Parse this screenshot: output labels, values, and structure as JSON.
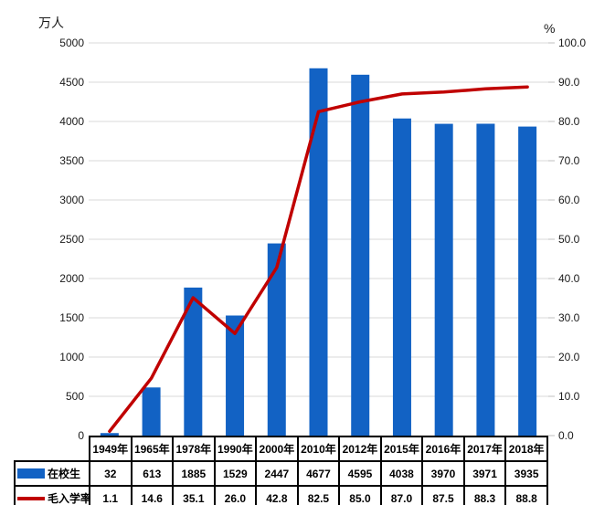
{
  "chart_data": {
    "type": "combo",
    "title": "",
    "categories": [
      "1949年",
      "1965年",
      "1978年",
      "1990年",
      "2000年",
      "2010年",
      "2012年",
      "2015年",
      "2016年",
      "2017年",
      "2018年"
    ],
    "series": [
      {
        "name": "在校生",
        "type": "bar",
        "axis": "left",
        "color": "#1262C4",
        "values": [
          32,
          613,
          1885,
          1529,
          2447,
          4677,
          4595,
          4038,
          3970,
          3971,
          3935
        ],
        "labels": [
          "32",
          "613",
          "1885",
          "1529",
          "2447",
          "4677",
          "4595",
          "4038",
          "3970",
          "3971",
          "3935"
        ]
      },
      {
        "name": "毛入学率",
        "type": "line",
        "axis": "right",
        "color": "#C00000",
        "values": [
          1.1,
          14.6,
          35.1,
          26.0,
          42.8,
          82.5,
          85.0,
          87.0,
          87.5,
          88.3,
          88.8
        ],
        "labels": [
          "1.1",
          "14.6",
          "35.1",
          "26.0",
          "42.8",
          "82.5",
          "85.0",
          "87.0",
          "87.5",
          "88.3",
          "88.8"
        ]
      }
    ],
    "left_axis": {
      "title": "万人",
      "min": 0,
      "max": 5000,
      "step": 500,
      "tick_labels": [
        "0",
        "500",
        "1000",
        "1500",
        "2000",
        "2500",
        "3000",
        "3500",
        "4000",
        "4500",
        "5000"
      ]
    },
    "right_axis": {
      "title": "%",
      "min": 0,
      "max": 100,
      "step": 10,
      "tick_labels": [
        "0.0",
        "10.0",
        "20.0",
        "30.0",
        "40.0",
        "50.0",
        "60.0",
        "70.0",
        "80.0",
        "90.0",
        "100.0"
      ]
    },
    "grid": true,
    "legend_position": "table-left",
    "gridline_color": "#D9D9D9",
    "tick_mark_color": "#BFBFBF",
    "table_border_color": "#000000"
  }
}
